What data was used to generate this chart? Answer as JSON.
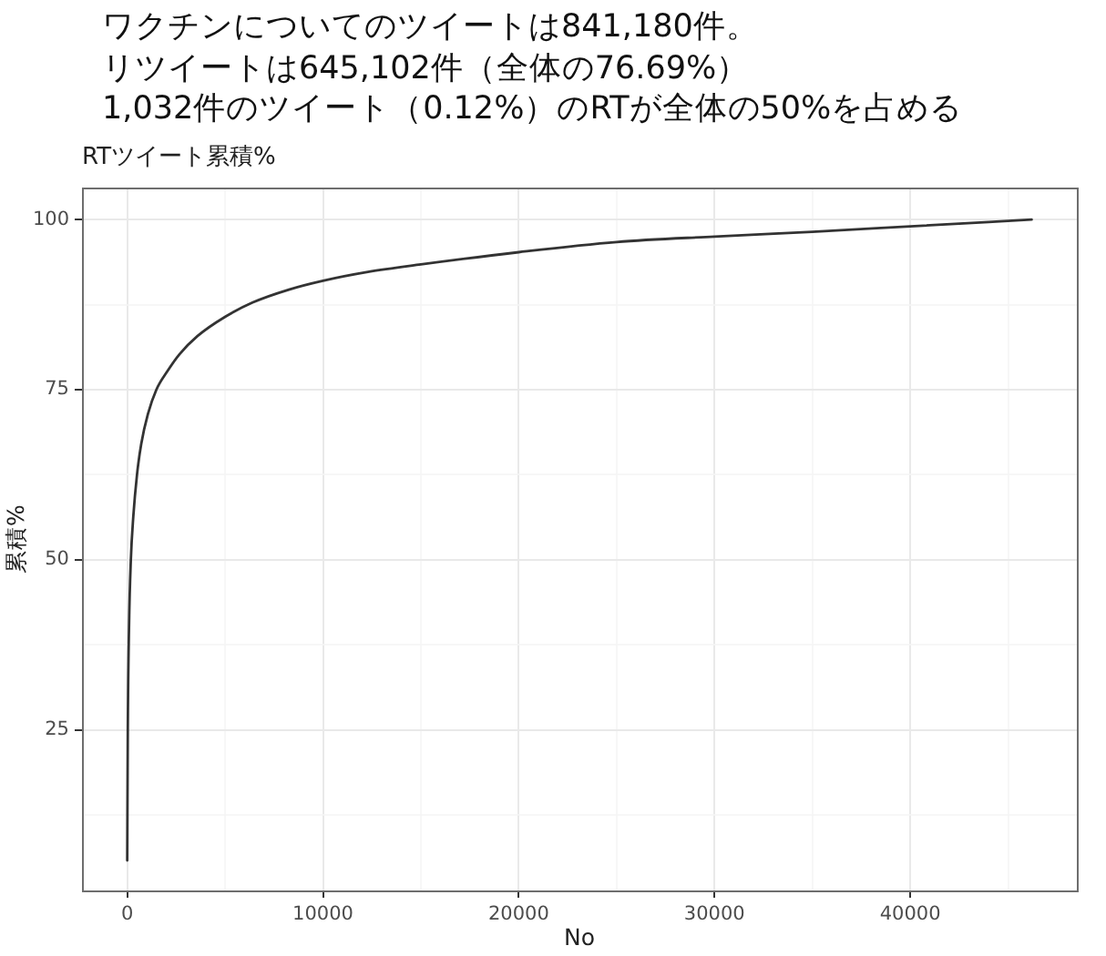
{
  "chart_data": {
    "type": "line",
    "title": "ワクチンについてのツイートは841,180件。",
    "annotations": [
      "リツイートは645,102件（全体の76.69%）",
      "1,032件のツイート（0.12%）のRTが全体の50%を占める"
    ],
    "subtitle": "RTツイート累積%",
    "xlabel": "No",
    "ylabel": "累積%",
    "x": [
      1,
      30,
      93,
      186,
      310,
      500,
      715,
      1056,
      1490,
      2050,
      2670,
      3600,
      5000,
      6400,
      8260,
      10000,
      12300,
      15000,
      20000,
      25000,
      30000,
      35000,
      40000,
      46200
    ],
    "series": [
      {
        "color": "#333333",
        "values": [
          5.8,
          25,
          40.2,
          50,
          56.3,
          62.5,
          67,
          71.4,
          75,
          77.7,
          80.2,
          82.9,
          85.7,
          87.8,
          89.7,
          91.0,
          92.3,
          93.4,
          95.2,
          96.7,
          97.5,
          98.2,
          99.0,
          100
        ]
      }
    ],
    "xlim": [
      -2310,
      48510
    ],
    "ylim": [
      1.4,
      104.7
    ],
    "xticks": [
      0,
      {
        "value": 5000,
        "label": null
      },
      10000,
      {
        "value": 15000,
        "label": null
      },
      20000,
      {
        "value": 25000,
        "label": null
      },
      30000,
      {
        "value": 35000,
        "label": null
      },
      40000,
      {
        "value": 45000,
        "label": null
      }
    ],
    "yticks": [
      {
        "value": 12.5,
        "label": null
      },
      25,
      {
        "value": 37.5,
        "label": null
      },
      50,
      {
        "value": 62.5,
        "label": null
      },
      75,
      {
        "value": 87.5,
        "label": null
      },
      100
    ],
    "grid": true,
    "marker": "none",
    "line_style": "solid"
  }
}
